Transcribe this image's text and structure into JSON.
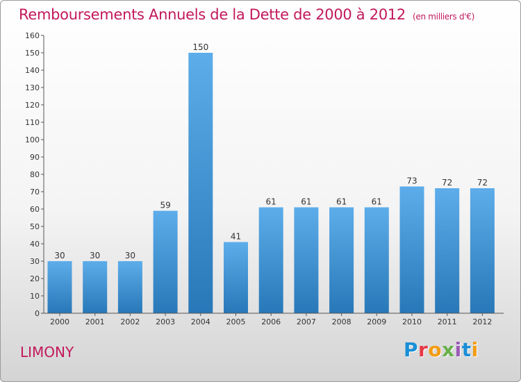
{
  "chart_data": {
    "type": "bar",
    "title": "Remboursements Annuels de la Dette de 2000 à 2012",
    "subtitle": "(en milliers d'€)",
    "xlabel": "",
    "ylabel": "",
    "categories": [
      "2000",
      "2001",
      "2002",
      "2003",
      "2004",
      "2005",
      "2006",
      "2007",
      "2008",
      "2009",
      "2010",
      "2011",
      "2012"
    ],
    "values": [
      30,
      30,
      30,
      59,
      150,
      41,
      61,
      61,
      61,
      61,
      73,
      72,
      72
    ],
    "ylim": [
      0,
      160
    ],
    "yticks": [
      0,
      10,
      20,
      30,
      40,
      50,
      60,
      70,
      80,
      90,
      100,
      110,
      120,
      130,
      140,
      150,
      160
    ],
    "grid": false,
    "bar_color": "#4a9ee0",
    "bar_color_top": "#5dadea",
    "bar_color_bottom": "#2878b8"
  },
  "footer": {
    "place": "LIMONY",
    "logo_text": "Proxiti",
    "logo_colors": [
      "#1a8fd6",
      "#e63946",
      "#f39c12",
      "#6ab04c",
      "#9b59b6",
      "#1a8fd6",
      "#f39c12"
    ]
  },
  "colors": {
    "title": "#c2185b",
    "axis": "#333333"
  }
}
